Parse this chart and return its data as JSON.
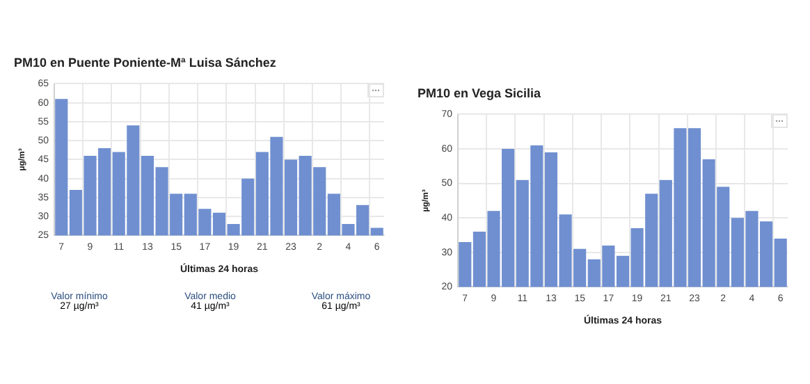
{
  "chart_data": [
    {
      "type": "bar",
      "title": "PM10 en Puente Poniente-Mª Luisa Sánchez",
      "xlabel": "Últimas 24 horas",
      "ylabel": "µg/m³",
      "categories": [
        "7",
        null,
        "9",
        null,
        "11",
        null,
        "13",
        null,
        "15",
        null,
        "17",
        null,
        "19",
        null,
        "21",
        null,
        "23",
        null,
        "2",
        null,
        "4",
        null,
        "6"
      ],
      "values": [
        61,
        37,
        46,
        48,
        47,
        54,
        46,
        43,
        36,
        36,
        32,
        31,
        28,
        40,
        47,
        51,
        45,
        46,
        43,
        36,
        28,
        33,
        27
      ],
      "color": "#6f8fd0",
      "ylim": [
        25,
        65
      ],
      "yticks": [
        25,
        30,
        35,
        40,
        45,
        50,
        55,
        60,
        65
      ],
      "grid": true,
      "legend": false,
      "annotations": [
        "Valor mínimo",
        "27 µg/m³",
        "Valor medio",
        "41 µg/m³",
        "Valor máximo",
        "61 µg/m³"
      ]
    },
    {
      "type": "bar",
      "title": "PM10 en Vega Sicilia",
      "xlabel": "Últimas 24 horas",
      "ylabel": "µg/m³",
      "categories": [
        "7",
        null,
        "9",
        null,
        "11",
        null,
        "13",
        null,
        "15",
        null,
        "17",
        null,
        "19",
        null,
        "21",
        null,
        "23",
        null,
        "2",
        null,
        "4",
        null,
        "6"
      ],
      "values": [
        33,
        36,
        42,
        60,
        51,
        61,
        59,
        41,
        31,
        28,
        32,
        29,
        37,
        47,
        51,
        66,
        66,
        57,
        49,
        40,
        42,
        39,
        34
      ],
      "color": "#6f8fd0",
      "ylim": [
        20,
        70
      ],
      "yticks": [
        20,
        30,
        40,
        50,
        60,
        70
      ],
      "grid": true,
      "legend": false
    }
  ]
}
